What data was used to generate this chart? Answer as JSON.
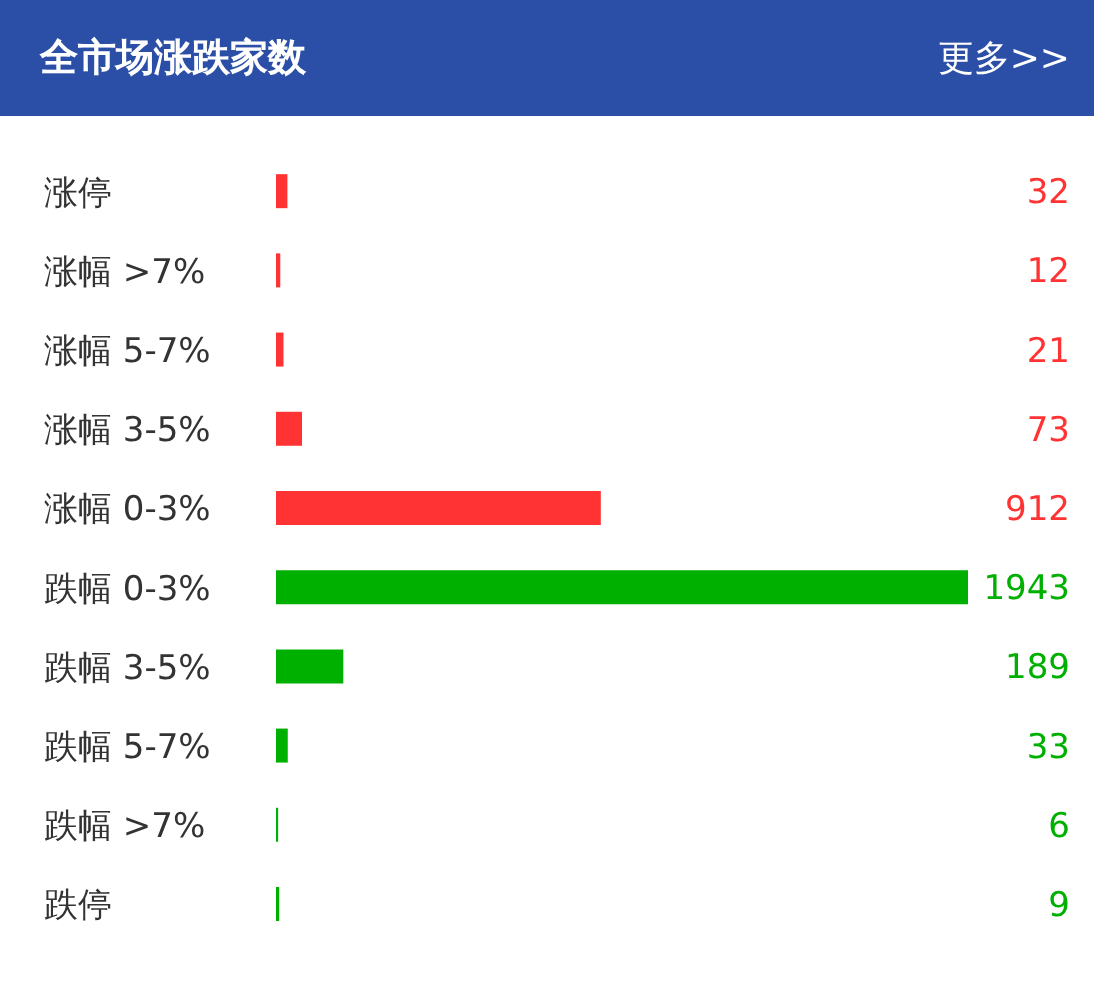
{
  "chart_data": {
    "type": "bar",
    "orientation": "horizontal",
    "title": "全市场涨跌家数",
    "annotations": [
      "更多>>"
    ],
    "categories": [
      "涨停",
      "涨幅 >7%",
      "涨幅 5-7%",
      "涨幅 3-5%",
      "涨幅 0-3%",
      "跌幅 0-3%",
      "跌幅 3-5%",
      "跌幅 5-7%",
      "跌幅 >7%",
      "跌停"
    ],
    "values": [
      32,
      12,
      21,
      73,
      912,
      1943,
      189,
      33,
      6,
      9
    ],
    "colors": [
      "#ff3333",
      "#ff3333",
      "#ff3333",
      "#ff3333",
      "#ff3333",
      "#00b000",
      "#00b000",
      "#00b000",
      "#00b000",
      "#00b000"
    ],
    "data_labels": true,
    "tick_labels": "y"
  }
}
